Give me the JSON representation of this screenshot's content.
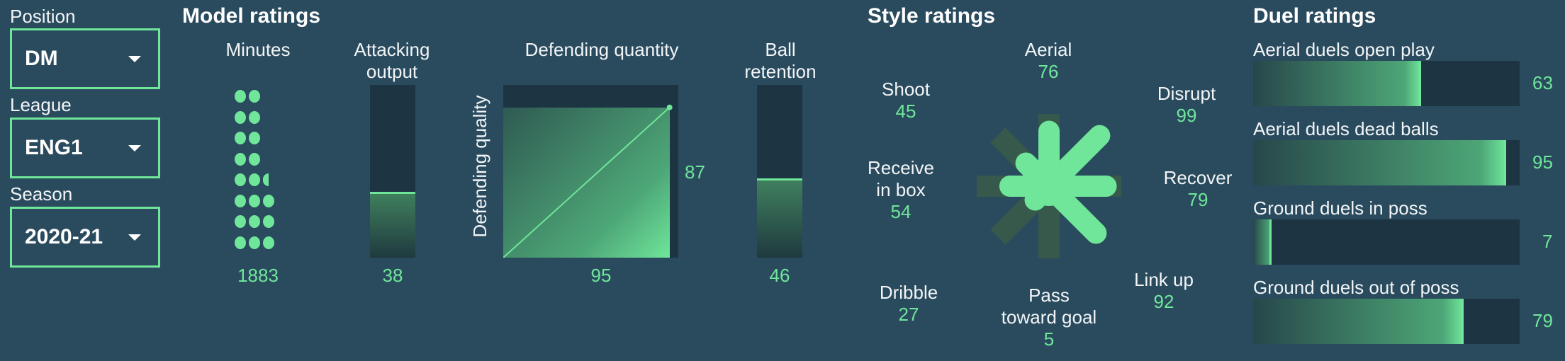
{
  "filters": {
    "position": {
      "label": "Position",
      "value": "DM"
    },
    "league": {
      "label": "League",
      "value": "ENG1"
    },
    "season": {
      "label": "Season",
      "value": "2020-21"
    }
  },
  "model": {
    "header": "Model ratings",
    "minutes": {
      "label": "Minutes",
      "value": "1883",
      "dot_rows": [
        2,
        2,
        2,
        2,
        2.5,
        3,
        3,
        3
      ]
    },
    "attacking": {
      "label_line1": "Attacking",
      "label_line2": "output",
      "value": "38",
      "fraction": 0.38
    },
    "defending": {
      "label": "Defending quantity",
      "ylabel": "Defending quality",
      "quantity": "95",
      "quality": "87",
      "quantity_fraction": 0.95,
      "quality_fraction": 0.87
    },
    "ball": {
      "label_line1": "Ball",
      "label_line2": "retention",
      "value": "46",
      "fraction": 0.46
    }
  },
  "style": {
    "header": "Style ratings",
    "axes": [
      {
        "name": "Aerial",
        "value": "76",
        "pct": 76
      },
      {
        "name": "Disrupt",
        "value": "99",
        "pct": 99
      },
      {
        "name": "Recover",
        "value": "79",
        "pct": 79
      },
      {
        "name": "Link up",
        "value": "92",
        "pct": 92
      },
      {
        "name": "Pass toward goal",
        "line1": "Pass",
        "line2": "toward goal",
        "value": "5",
        "pct": 5
      },
      {
        "name": "Dribble",
        "value": "27",
        "pct": 27
      },
      {
        "name": "Receive in box",
        "line1": "Receive",
        "line2": "in box",
        "value": "54",
        "pct": 54
      },
      {
        "name": "Shoot",
        "value": "45",
        "pct": 45
      }
    ]
  },
  "duel": {
    "header": "Duel ratings",
    "rows": [
      {
        "label": "Aerial duels open play",
        "value": "63",
        "pct": 63
      },
      {
        "label": "Aerial duels dead balls",
        "value": "95",
        "pct": 95
      },
      {
        "label": "Ground duels in poss",
        "value": "7",
        "pct": 7
      },
      {
        "label": "Ground duels out of poss",
        "value": "79",
        "pct": 79
      }
    ]
  },
  "colors": {
    "background": "#2a4b5e",
    "accent": "#6fe69a",
    "track": "#1d3443"
  }
}
